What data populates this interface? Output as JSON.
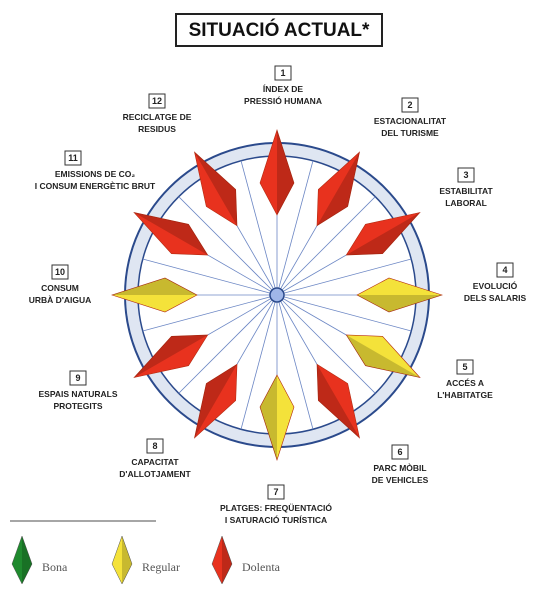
{
  "title": "SITUACIÓ ACTUAL*",
  "nodes": [
    {
      "number": "1",
      "label": [
        "ÍNDEX DE",
        "PRESSIÓ HUMANA"
      ],
      "color": "#e8321e"
    },
    {
      "number": "2",
      "label": [
        "ESTACIONALITAT",
        "DEL TURISME"
      ],
      "color": "#e8321e"
    },
    {
      "number": "3",
      "label": [
        "ESTABILITAT",
        "LABORAL"
      ],
      "color": "#e8321e"
    },
    {
      "number": "4",
      "label": [
        "EVOLUCIÓ",
        "DELS SALARIS"
      ],
      "color": "#f4e23a"
    },
    {
      "number": "5",
      "label": [
        "ACCÉS A",
        "L'HABITATGE"
      ],
      "color": "#f4e23a"
    },
    {
      "number": "6",
      "label": [
        "PARC MÒBIL",
        "DE VEHICLES"
      ],
      "color": "#e8321e"
    },
    {
      "number": "7",
      "label": [
        "PLATGES: FREQÜENTACIÓ",
        "I SATURACIÓ TURÍSTICA"
      ],
      "color": "#f4e23a"
    },
    {
      "number": "8",
      "label": [
        "CAPACITAT",
        "D'ALLOTJAMENT"
      ],
      "color": "#e8321e"
    },
    {
      "number": "9",
      "label": [
        "ESPAIS NATURALS",
        "PROTEGITS"
      ],
      "color": "#e8321e"
    },
    {
      "number": "10",
      "label": [
        "CONSUM",
        "URBÀ D'AIGUA"
      ],
      "color": "#f4e23a"
    },
    {
      "number": "11",
      "label": [
        "EMISSIONS DE CO₂",
        "I CONSUM ENERGÈTIC BRUT"
      ],
      "color": "#e8321e"
    },
    {
      "number": "12",
      "label": [
        "RECICLATGE DE",
        "RESIDUS"
      ],
      "color": "#e8321e"
    }
  ],
  "legend": [
    {
      "name": "Bona",
      "color": "#1f8a2e"
    },
    {
      "name": "Regular",
      "color": "#f4e23a"
    },
    {
      "name": "Dolenta",
      "color": "#e8321e"
    }
  ]
}
